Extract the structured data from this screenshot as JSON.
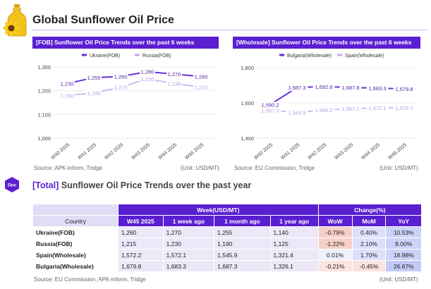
{
  "header": {
    "title": "Global Sunflower Oil Price"
  },
  "charts": {
    "left": {
      "panel_title": "[FOB] Sunflower Oil Price Trends over the past 6 weeks",
      "source": "Source: APK-inform, Tridge",
      "unit": "(Unit: USD/MT)"
    },
    "right": {
      "panel_title": "[Wholesale] Sunflower Oil Price Trends over the past 6 weeks",
      "source": "Source: EU Commission, Tridge",
      "unit": "(Unit: USD/MT)"
    }
  },
  "chart_data": [
    {
      "type": "line",
      "categories": [
        "W40 2025",
        "W41 2025",
        "W42 2025",
        "W43 2025",
        "W44 2025",
        "W45 2025"
      ],
      "series": [
        {
          "name": "Ukraine(FOB)",
          "color": "#6a2fd6",
          "values": [
            1230,
            1255,
            1260,
            1280,
            1270,
            1260
          ]
        },
        {
          "name": "Russia(FOB)",
          "color": "#c2a8f0",
          "values": [
            1180,
            1190,
            1215,
            1250,
            1230,
            1215
          ]
        }
      ],
      "ylim": [
        1000,
        1300
      ],
      "yticks": [
        "1,000",
        "1,100",
        "1,200",
        "1,300"
      ],
      "labels": {
        "Ukraine(FOB)": [
          "1,230",
          "1,255",
          "1,260",
          "1,280",
          "1,270",
          "1,260"
        ],
        "Russia(FOB)": [
          "1,180",
          "1,190",
          "1,215",
          "1,250",
          "1,230",
          "1,215"
        ]
      },
      "legend": "top"
    },
    {
      "type": "line",
      "categories": [
        "W40 2025",
        "W41 2025",
        "W42 2025",
        "W43 2025",
        "W44 2025",
        "W45 2025"
      ],
      "series": [
        {
          "name": "Bulgaria(Wholesale)",
          "color": "#6a2fd6",
          "values": [
            1590.2,
            1687.3,
            1692.6,
            1687.8,
            1683.3,
            1679.8
          ]
        },
        {
          "name": "Spain(Wholesale)",
          "color": "#c2a8f0",
          "values": [
            1557.3,
            1545.9,
            1560.2,
            1567.1,
            1572.1,
            1572.2
          ]
        }
      ],
      "ylim": [
        1400,
        1800
      ],
      "yticks": [
        "1,400",
        "1,600",
        "1,800"
      ],
      "labels": {
        "Bulgaria(Wholesale)": [
          "1,590.2",
          "1,687.3",
          "1,692.6",
          "1,687.8",
          "1,683.3",
          "1,679.8"
        ],
        "Spain(Wholesale)": [
          "1,557.3",
          "1,545.9",
          "1,560.2",
          "1,567.1",
          "1,572.1",
          "1,572.2"
        ]
      },
      "legend": "top"
    },
    {
      "type": "table",
      "title": "[Total] Sunflower Oil Price Trends over the past year",
      "columns": [
        "Country",
        "W45 2025",
        "1 week ago",
        "1 month ago",
        "1 year ago",
        "WoW",
        "MoM",
        "YoY"
      ],
      "rows": [
        [
          "Ukraine(FOB)",
          "1,260",
          "1,270",
          "1,255",
          "1,140",
          "-0.79%",
          "0.40%",
          "10.53%"
        ],
        [
          "Russia(FOB)",
          "1,215",
          "1,230",
          "1,190",
          "1,125",
          "-1.22%",
          "2.10%",
          "8.00%"
        ],
        [
          "Spain(Wholesale)",
          "1,572.2",
          "1,572.1",
          "1,545.9",
          "1,321.4",
          "0.01%",
          "1.70%",
          "18.98%"
        ],
        [
          "Bulgaria(Wholesale)",
          "1,679.8",
          "1,683.3",
          "1,687.3",
          "1,326.1",
          "-0.21%",
          "-0.45%",
          "26.67%"
        ]
      ]
    }
  ],
  "table": {
    "prefix": "[Total]",
    "title_rest": " Sunflower Oil Price Trends over the past year",
    "group_week": "Week(USD/MT)",
    "group_change": "Change(%)",
    "source": "Source: EU Commission, APK-inform, Tridge",
    "unit": "(Unit: USD/MT)"
  },
  "icons": {
    "logo": "sunflower-oil-bottle-icon",
    "doc": "doc-hexagon-icon",
    "doc_label": "Doc"
  }
}
